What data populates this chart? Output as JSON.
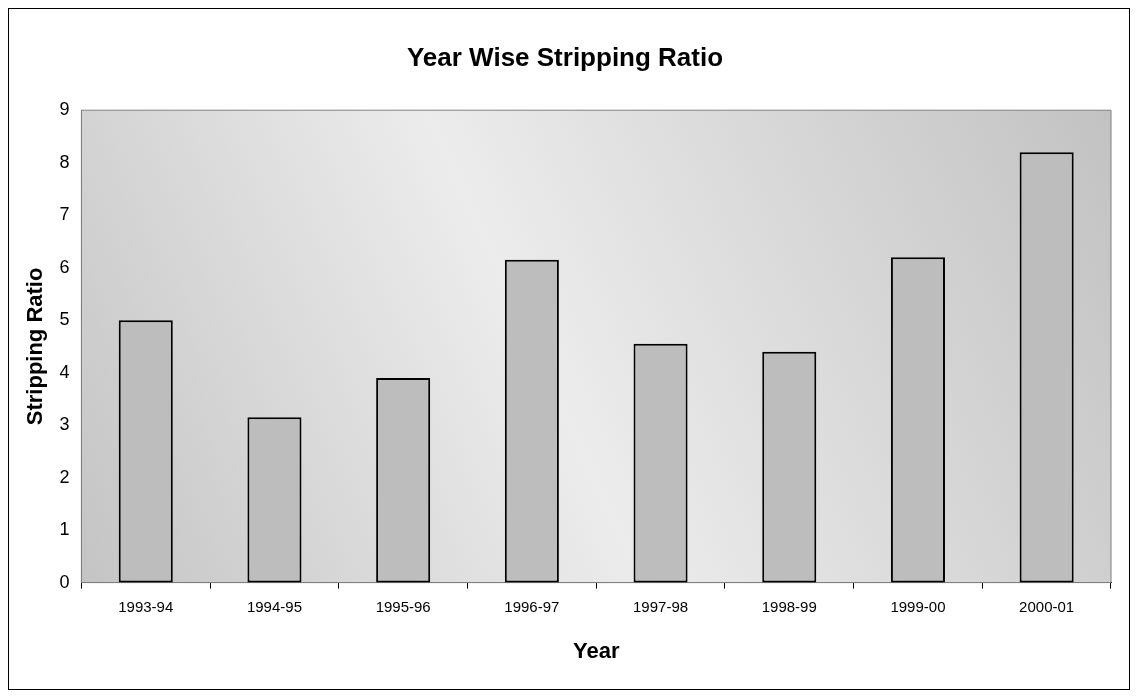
{
  "chart_data": {
    "type": "bar",
    "title": "Year Wise Stripping Ratio",
    "xlabel": "Year",
    "ylabel": "Stripping Ratio",
    "categories": [
      "1993-94",
      "1994-95",
      "1995-96",
      "1996-97",
      "1997-98",
      "1998-99",
      "1999-00",
      "2000-01"
    ],
    "values": [
      5.0,
      3.15,
      3.9,
      6.15,
      4.55,
      4.4,
      6.2,
      8.2
    ],
    "color": "#bdbdbd",
    "ylim": [
      0,
      9
    ],
    "yticks": [
      0,
      1,
      2,
      3,
      4,
      5,
      6,
      7,
      8,
      9
    ],
    "grid": false,
    "legend": false
  }
}
